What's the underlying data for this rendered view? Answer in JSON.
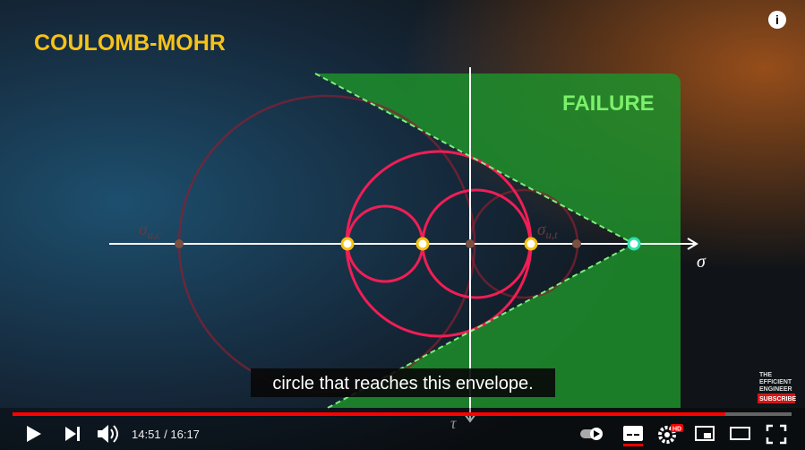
{
  "video": {
    "overlay_title": "COULOMB-MOHR",
    "region_label": "FAILURE",
    "axis_labels": {
      "sigma": "σ",
      "tau": "τ"
    },
    "point_labels": [
      {
        "symbol": "σ",
        "subscript": "u,c"
      },
      {
        "symbol": "σ",
        "subscript": "u,t"
      }
    ],
    "subtitle": "circle that reaches this envelope.",
    "watermark": {
      "lines": [
        "THE",
        "EFFICIENT",
        "ENGINEER"
      ],
      "button": "SUBSCRIBE"
    }
  },
  "controls": {
    "time": "14:51 / 16:17",
    "quality_badge": "HD"
  }
}
